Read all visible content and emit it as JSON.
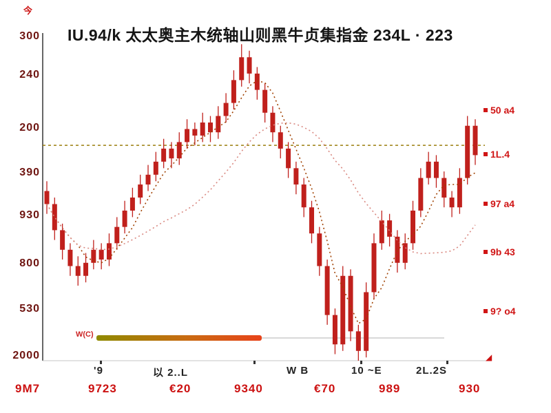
{
  "title": "IU.94/k 太太奥主木统轴山则黑牛贞集指金 234L · 223",
  "corner_mark": "今",
  "chart_data": {
    "type": "candlestick",
    "title": "IU.94/k 太太奥主木统轴山则黑牛贞集指金 234L · 223",
    "y_tick_labels": [
      "300",
      "240",
      "200",
      "390",
      "930",
      "800",
      "530",
      "2000"
    ],
    "x_tick_labels": [
      "'9",
      "以 2..L",
      "W B",
      "10 ~E",
      "2L.2S"
    ],
    "value_range": [
      2000,
      3000
    ],
    "resistance_level": 2660,
    "grid": false,
    "legend_position": "none",
    "candle_color": "#c0201c",
    "ma_short_color": "#a04000",
    "ma_long_color": "#d98880",
    "resistance_color": "#9a7d0a",
    "volume_label": "W(C)",
    "ma_periods": [
      5,
      18
    ],
    "candles": [
      [
        2520,
        2550,
        2450,
        2480
      ],
      [
        2480,
        2500,
        2370,
        2400
      ],
      [
        2400,
        2420,
        2310,
        2340
      ],
      [
        2340,
        2360,
        2260,
        2290
      ],
      [
        2290,
        2320,
        2230,
        2260
      ],
      [
        2260,
        2330,
        2240,
        2300
      ],
      [
        2300,
        2370,
        2280,
        2340
      ],
      [
        2340,
        2360,
        2280,
        2310
      ],
      [
        2310,
        2390,
        2290,
        2360
      ],
      [
        2360,
        2440,
        2340,
        2410
      ],
      [
        2410,
        2490,
        2390,
        2460
      ],
      [
        2460,
        2530,
        2440,
        2500
      ],
      [
        2500,
        2570,
        2480,
        2540
      ],
      [
        2540,
        2600,
        2520,
        2570
      ],
      [
        2570,
        2640,
        2550,
        2610
      ],
      [
        2610,
        2680,
        2590,
        2650
      ],
      [
        2650,
        2670,
        2590,
        2620
      ],
      [
        2620,
        2700,
        2600,
        2670
      ],
      [
        2670,
        2740,
        2650,
        2710
      ],
      [
        2710,
        2730,
        2660,
        2690
      ],
      [
        2690,
        2760,
        2670,
        2730
      ],
      [
        2730,
        2750,
        2670,
        2700
      ],
      [
        2700,
        2780,
        2680,
        2750
      ],
      [
        2750,
        2820,
        2730,
        2790
      ],
      [
        2790,
        2890,
        2770,
        2860
      ],
      [
        2860,
        2970,
        2840,
        2930
      ],
      [
        2930,
        2950,
        2850,
        2880
      ],
      [
        2880,
        2900,
        2800,
        2830
      ],
      [
        2830,
        2850,
        2730,
        2760
      ],
      [
        2760,
        2780,
        2670,
        2700
      ],
      [
        2700,
        2720,
        2620,
        2650
      ],
      [
        2650,
        2670,
        2560,
        2590
      ],
      [
        2590,
        2610,
        2510,
        2540
      ],
      [
        2540,
        2560,
        2440,
        2470
      ],
      [
        2470,
        2490,
        2360,
        2390
      ],
      [
        2390,
        2410,
        2260,
        2290
      ],
      [
        2290,
        2310,
        2110,
        2140
      ],
      [
        2140,
        2160,
        2020,
        2050
      ],
      [
        2050,
        2290,
        2030,
        2260
      ],
      [
        2260,
        2280,
        2060,
        2090
      ],
      [
        2090,
        2110,
        2000,
        2030
      ],
      [
        2030,
        2240,
        2010,
        2210
      ],
      [
        2210,
        2390,
        2190,
        2360
      ],
      [
        2360,
        2460,
        2340,
        2430
      ],
      [
        2430,
        2450,
        2350,
        2380
      ],
      [
        2380,
        2400,
        2270,
        2300
      ],
      [
        2300,
        2390,
        2280,
        2360
      ],
      [
        2360,
        2490,
        2340,
        2460
      ],
      [
        2460,
        2590,
        2440,
        2560
      ],
      [
        2560,
        2640,
        2540,
        2610
      ],
      [
        2610,
        2630,
        2530,
        2560
      ],
      [
        2560,
        2580,
        2470,
        2500
      ],
      [
        2500,
        2520,
        2440,
        2470
      ],
      [
        2470,
        2590,
        2450,
        2560
      ],
      [
        2560,
        2750,
        2540,
        2720
      ],
      [
        2720,
        2740,
        2600,
        2630
      ]
    ]
  },
  "right_labels": [
    {
      "text": "50 a4"
    },
    {
      "text": "1L.4"
    },
    {
      "text": "97 a4"
    },
    {
      "text": "9b 43"
    },
    {
      "text": "9? o4"
    }
  ],
  "bottom_values": [
    "9M7",
    "9723",
    "€20",
    "9340",
    "€70",
    "989",
    "930"
  ]
}
